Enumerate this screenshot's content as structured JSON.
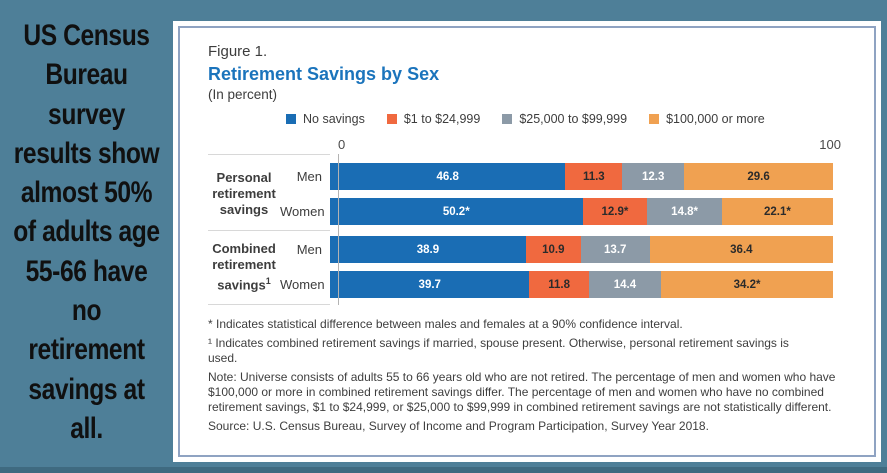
{
  "sidebar": {
    "text": "US Census\nBureau\nsurvey\nresults show\nalmost 50%\nof adults age\n55-66 have\nno\nretirement\nsavings at\nall."
  },
  "figure": {
    "label": "Figure 1.",
    "title": "Retirement Savings by Sex",
    "subtitle": "(In percent)"
  },
  "chart_data": {
    "type": "bar",
    "orientation": "horizontal",
    "stacked": true,
    "title": "Retirement Savings by Sex",
    "subtitle": "(In percent)",
    "axis": {
      "min": 0,
      "max": 100,
      "tick_labels": [
        "0",
        "100"
      ]
    },
    "legend_position": "top",
    "grid": false,
    "legend": [
      {
        "label": "No savings",
        "color": "#1a6db4",
        "value_color": "#ffffff"
      },
      {
        "label": "$1 to $24,999",
        "color": "#f0693f",
        "value_color": "#2b2b2b"
      },
      {
        "label": "$25,000 to $99,999",
        "color": "#8c9aa7",
        "value_color": "#ffffff"
      },
      {
        "label": "$100,000 or more",
        "color": "#f0a151",
        "value_color": "#2b2b2b"
      }
    ],
    "groups": [
      {
        "label": "Personal retirement savings",
        "sup": "",
        "rows": [
          {
            "label": "Men",
            "values": [
              46.8,
              11.3,
              12.3,
              29.6
            ],
            "display": [
              "46.8",
              "11.3",
              "12.3",
              "29.6"
            ]
          },
          {
            "label": "Women",
            "values": [
              50.2,
              12.9,
              14.8,
              22.1
            ],
            "display": [
              "50.2*",
              "12.9*",
              "14.8*",
              "22.1*"
            ]
          }
        ]
      },
      {
        "label": "Combined retirement savings",
        "sup": "1",
        "rows": [
          {
            "label": "Men",
            "values": [
              38.9,
              10.9,
              13.7,
              36.4
            ],
            "display": [
              "38.9",
              "10.9",
              "13.7",
              "36.4"
            ]
          },
          {
            "label": "Women",
            "values": [
              39.7,
              11.8,
              14.4,
              34.2
            ],
            "display": [
              "39.7",
              "11.8",
              "14.4",
              "34.2*"
            ]
          }
        ]
      }
    ]
  },
  "footnotes": [
    "* Indicates statistical difference between males and females at a 90% confidence interval.",
    "¹ Indicates combined retirement savings if married, spouse present. Otherwise, personal retirement savings is used.",
    "Note: Universe consists of adults 55 to 66 years old who are not retired. The percentage of men and women who have $100,000 or more in combined retirement savings differ. The percentage of men and women who have no combined retirement savings, $1 to $24,999, or $25,000 to $99,999 in combined retirement savings are not statistically different.",
    "Source: U.S. Census Bureau, Survey of Income and Program Participation, Survey Year 2018."
  ],
  "colors": {
    "background_teal": "#4e7f98",
    "bottom_strip": "#3f6a80",
    "panel_border": "#8fa3c2",
    "title_blue": "#1b74bc",
    "text_dark": "#3d3d3d",
    "separator_gray": "#d8d8d8",
    "axis_line_gray": "#b3b3b3"
  }
}
